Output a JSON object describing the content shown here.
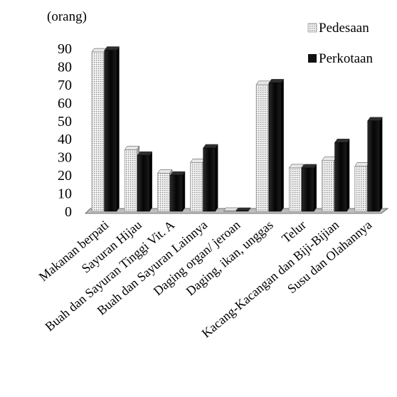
{
  "chart_data": {
    "type": "bar",
    "title": "",
    "unit_label": "(orang)",
    "xlabel": "",
    "ylabel": "",
    "ylim": [
      0,
      90
    ],
    "yticks": [
      0,
      10,
      20,
      30,
      40,
      50,
      60,
      70,
      80,
      90
    ],
    "grid": false,
    "legend_position": "top-right",
    "categories": [
      "Makanan berpati",
      "Sayuran Hijau",
      "Buah dan Sayuran Tinggi Vit. A",
      "Buah dan Sayuran Lainnya",
      "Daging organ/ jeroan",
      "Daging, ikan, unggas",
      "Telur",
      "Kacang-Kacangan dan Biji-Bijian",
      "Susu dan Olahannya"
    ],
    "series": [
      {
        "name": "Pedesaan",
        "values": [
          88,
          34,
          21,
          27,
          0,
          70,
          24,
          28,
          25
        ],
        "color": "#dcdcdc"
      },
      {
        "name": "Perkotaan",
        "values": [
          89,
          31,
          20,
          35,
          0,
          71,
          24,
          38,
          50
        ],
        "color": "#111111"
      }
    ]
  }
}
